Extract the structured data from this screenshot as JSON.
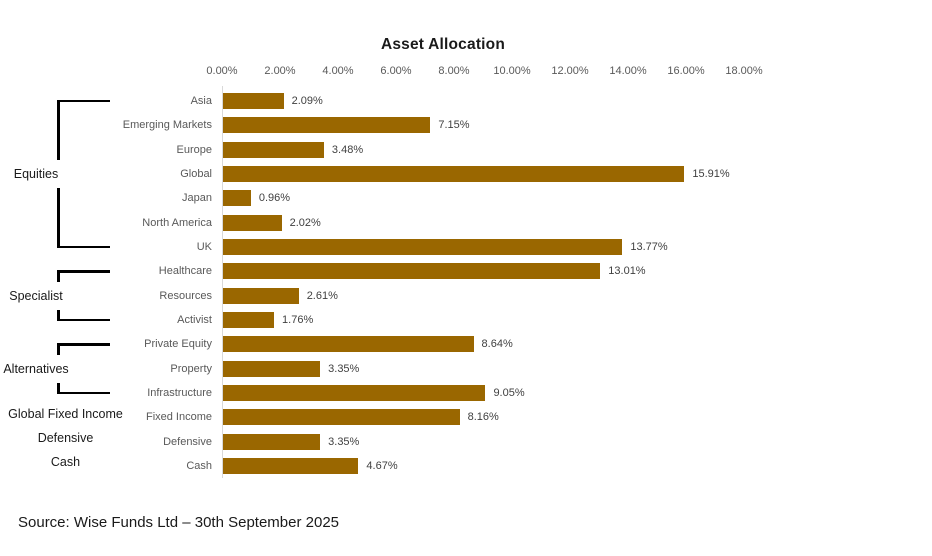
{
  "title": "Asset Allocation",
  "source": "Source: Wise Funds Ltd – 30th September 2025",
  "colors": {
    "bar": "#9a6700",
    "axis_line": "#d9d9d9",
    "tick_label": "#595959",
    "category_label": "#595959",
    "value_label": "#404040",
    "title_text": "#1a1a1a",
    "group_label": "#1a1a1a",
    "bracket": "#000000",
    "background": "#ffffff"
  },
  "chart_data": {
    "type": "bar",
    "orientation": "horizontal",
    "title": "Asset Allocation",
    "xlabel": "",
    "ylabel": "",
    "xlim": [
      0,
      18
    ],
    "x_tick_step": 2,
    "x_tick_labels": [
      "0.00%",
      "2.00%",
      "4.00%",
      "6.00%",
      "8.00%",
      "10.00%",
      "12.00%",
      "14.00%",
      "16.00%",
      "18.00%"
    ],
    "grid": false,
    "legend": false,
    "categories": [
      "Asia",
      "Emerging Markets",
      "Europe",
      "Global",
      "Japan",
      "North America",
      "UK",
      "Healthcare",
      "Resources",
      "Activist",
      "Private Equity",
      "Property",
      "Infrastructure",
      "Fixed Income",
      "Defensive",
      "Cash"
    ],
    "values": [
      2.09,
      7.15,
      3.48,
      15.91,
      0.96,
      2.02,
      13.77,
      13.01,
      2.61,
      1.76,
      8.64,
      3.35,
      9.05,
      8.16,
      3.35,
      4.67
    ],
    "value_labels": [
      "2.09%",
      "7.15%",
      "3.48%",
      "15.91%",
      "0.96%",
      "2.02%",
      "13.77%",
      "13.01%",
      "2.61%",
      "1.76%",
      "8.64%",
      "3.35%",
      "9.05%",
      "8.16%",
      "3.35%",
      "4.67%"
    ],
    "groups": [
      {
        "label": "Equities",
        "from": 0,
        "to": 6,
        "bracket": true
      },
      {
        "label": "Specialist",
        "from": 7,
        "to": 9,
        "bracket": true
      },
      {
        "label": "Alternatives",
        "from": 10,
        "to": 12,
        "bracket": true
      },
      {
        "label": "Global Fixed Income",
        "from": 13,
        "to": 13,
        "bracket": false
      },
      {
        "label": "Defensive",
        "from": 14,
        "to": 14,
        "bracket": false
      },
      {
        "label": "Cash",
        "from": 15,
        "to": 15,
        "bracket": false
      }
    ]
  }
}
